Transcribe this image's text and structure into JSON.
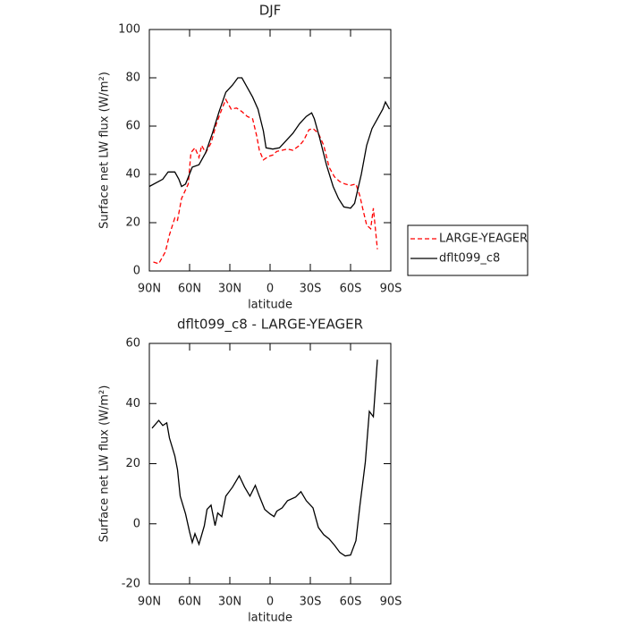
{
  "chart_data": [
    {
      "type": "line",
      "title": "DJF",
      "xlabel": "latitude",
      "ylabel": "Surface net LW flux (W/m²)",
      "xlim": [
        90,
        -90
      ],
      "ylim": [
        0,
        100
      ],
      "xticks": [
        {
          "value": 90,
          "label": "90N"
        },
        {
          "value": 60,
          "label": "60N"
        },
        {
          "value": 30,
          "label": "30N"
        },
        0,
        {
          "value": -30,
          "label": "30S"
        },
        {
          "value": -60,
          "label": "60S"
        },
        {
          "value": -90,
          "label": "90S"
        }
      ],
      "yticks": [
        0,
        20,
        40,
        60,
        80,
        100
      ],
      "legend": "right",
      "series": [
        {
          "name": "LARGE-YEAGER",
          "color": "#ff0000",
          "linestyle": "dashed",
          "x": [
            87,
            83,
            78,
            75,
            71,
            69,
            66,
            61,
            59,
            56,
            53,
            51,
            48,
            44,
            40,
            36,
            33,
            29,
            25,
            21,
            17,
            13,
            10,
            8,
            5,
            1,
            -2,
            -5,
            -9,
            -13,
            -17,
            -22,
            -25,
            -29,
            -32,
            -36,
            -40,
            -44,
            -48,
            -52,
            -56,
            -60,
            -64,
            -67,
            -69,
            -72,
            -75,
            -77,
            -80
          ],
          "values": [
            3.7,
            3,
            8,
            15,
            22,
            21,
            30,
            36,
            49,
            51,
            47,
            52,
            49,
            53,
            61,
            67,
            71,
            67,
            67.5,
            66,
            64,
            63,
            56,
            50,
            46,
            47.5,
            48,
            49.5,
            50,
            50.5,
            50,
            52,
            54,
            58.5,
            59,
            57,
            52,
            43,
            39,
            37,
            36,
            35.5,
            36,
            31,
            26,
            19,
            17.5,
            26,
            9
          ]
        },
        {
          "name": "dflt099_c8",
          "color": "#000000",
          "linestyle": "solid",
          "x": [
            90,
            80,
            76,
            71,
            68,
            66,
            63,
            58,
            53,
            48,
            43,
            38,
            33,
            28,
            24,
            21,
            17,
            13,
            9,
            5,
            3,
            -2,
            -7,
            -12,
            -17,
            -22,
            -27,
            -31,
            -33,
            -37,
            -42,
            -47,
            -51,
            -55,
            -60,
            -63,
            -68,
            -72,
            -76,
            -80,
            -84,
            -86,
            -89
          ],
          "values": [
            35,
            38,
            41,
            41,
            38,
            35,
            36,
            43,
            44,
            49,
            57,
            66,
            74,
            77,
            80,
            80,
            76,
            72,
            67,
            58,
            51,
            50.5,
            51,
            54,
            57,
            61,
            64,
            65.5,
            63,
            55,
            44,
            35,
            30,
            26.5,
            26,
            28,
            40,
            52,
            59,
            63,
            67,
            70,
            67
          ]
        }
      ]
    },
    {
      "type": "line",
      "title": "dflt099_c8 - LARGE-YEAGER",
      "xlabel": "latitude",
      "ylabel": "Surface net LW flux (W/m²)",
      "xlim": [
        90,
        -90
      ],
      "ylim": [
        -20,
        60
      ],
      "xticks": [
        {
          "value": 90,
          "label": "90N"
        },
        {
          "value": 60,
          "label": "60N"
        },
        {
          "value": 30,
          "label": "30N"
        },
        0,
        {
          "value": -30,
          "label": "30S"
        },
        {
          "value": -60,
          "label": "60S"
        },
        {
          "value": -90,
          "label": "90S"
        }
      ],
      "yticks": [
        -20,
        0,
        20,
        40,
        60
      ],
      "series": [
        {
          "color": "#000000",
          "linestyle": "solid",
          "x": [
            88,
            83,
            80,
            77,
            75,
            71,
            69,
            67,
            63,
            60,
            58,
            56,
            53,
            49,
            47,
            44,
            41,
            39,
            36,
            33,
            28,
            23,
            19,
            15,
            11,
            8,
            4,
            0,
            -3,
            -5,
            -9,
            -13,
            -19,
            -23,
            -27,
            -32,
            -36,
            -40,
            -44,
            -48,
            -52,
            -56,
            -60,
            -64,
            -67,
            -71,
            -74,
            -77,
            -80
          ],
          "values": [
            31.8,
            34.4,
            32.7,
            33.6,
            28.5,
            22.6,
            18,
            9.2,
            3.3,
            -2.7,
            -6.2,
            -3.3,
            -6.8,
            -0.6,
            4.8,
            6.2,
            -0.6,
            3.6,
            2.4,
            9.2,
            12.2,
            16,
            12.2,
            9.2,
            12.8,
            9.2,
            4.8,
            3.3,
            2.4,
            4.2,
            5.3,
            7.7,
            8.9,
            10.7,
            7.7,
            5.3,
            -1.2,
            -3.6,
            -5,
            -7.1,
            -9.5,
            -10.7,
            -10.4,
            -5.6,
            6.2,
            20.5,
            37.4,
            35.6,
            54.6
          ]
        }
      ]
    }
  ]
}
